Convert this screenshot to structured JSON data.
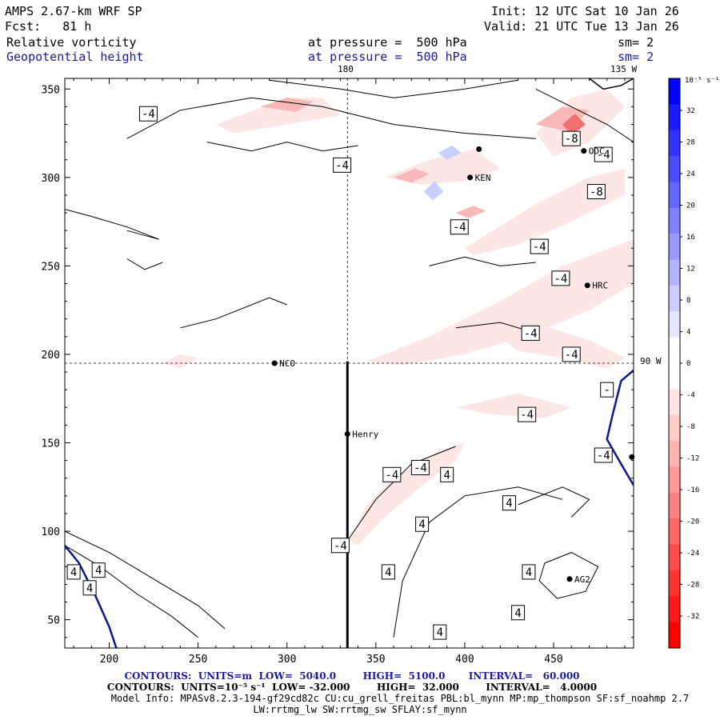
{
  "header": {
    "model": "AMPS 2.67-km WRF SP",
    "init": "Init: 12 UTC Sat 10 Jan 26",
    "fcst": "Fcst:   81 h",
    "valid": "Valid: 21 UTC Tue 13 Jan 26",
    "field1": "Relative vorticity",
    "field1_level": "at pressure =  500 hPa",
    "field1_sm": "sm= 2",
    "field2": "Geopotential height",
    "field2_level": "at pressure =  500 hPa",
    "field2_sm": "sm= 2"
  },
  "footer": {
    "line1": "CONTOURS:  UNITS=m  LOW=  5040.0        HIGH=  5100.0       INTERVAL=   60.000",
    "line2": "CONTOURS:  UNITS=10⁻⁵ s⁻¹  LOW= -32.000        HIGH=  32.000        INTERVAL=   4.0000",
    "line3": "Model Info: MPASv8.2.3-194-gf29cd82c CU:cu_grell_freitas PBL:bl_mynn MP:mp_thompson SF:sf_noahmp 2.7",
    "line4": "LW:rrtmg_lw SW:rrtmg_sw SFLAY:sf_mynn"
  },
  "colors": {
    "geopotential": "#0a1a8c",
    "neg_line": "#000000",
    "pos_fill": "#7f93ff",
    "neg_fill": "#ff8080"
  },
  "chart_data": {
    "type": "heatmap",
    "title": "Relative vorticity / Geopotential height at 500 hPa",
    "xlim": [
      175,
      495
    ],
    "ylim": [
      34,
      356
    ],
    "x_ticks": [
      200,
      250,
      300,
      350,
      400,
      450
    ],
    "y_ticks": [
      50,
      100,
      150,
      200,
      250,
      300,
      350
    ],
    "grid_labels": {
      "lon_180": "180",
      "lon_135w": "135 W",
      "lat_90w": "90 W"
    },
    "reference_lines": {
      "vertical_x": 334,
      "horizontal_y": 195
    },
    "cross_section": {
      "x": 334,
      "y_from": 34,
      "y_to": 196
    },
    "stations": [
      {
        "name": "NCO",
        "x": 293,
        "y": 195
      },
      {
        "name": "Henry",
        "x": 334,
        "y": 155
      },
      {
        "name": "ODC",
        "x": 467,
        "y": 315
      },
      {
        "name": "HRC",
        "x": 469,
        "y": 239
      },
      {
        "name": "KEN",
        "x": 403,
        "y": 300
      },
      {
        "name": "AG2",
        "x": 459,
        "y": 73
      },
      {
        "name": "",
        "x": 408,
        "y": 316
      },
      {
        "name": "",
        "x": 494,
        "y": 142
      }
    ],
    "contour_labels": [
      {
        "text": "-4",
        "x": 222,
        "y": 336
      },
      {
        "text": "-4",
        "x": 331,
        "y": 307
      },
      {
        "text": "-4",
        "x": 397,
        "y": 272
      },
      {
        "text": "-8",
        "x": 460,
        "y": 322
      },
      {
        "text": "-4",
        "x": 478,
        "y": 313
      },
      {
        "text": "-8",
        "x": 474,
        "y": 292
      },
      {
        "text": "-4",
        "x": 442,
        "y": 261
      },
      {
        "text": "-4",
        "x": 454,
        "y": 243
      },
      {
        "text": "-4",
        "x": 437,
        "y": 212
      },
      {
        "text": "-4",
        "x": 460,
        "y": 200
      },
      {
        "text": "-",
        "x": 480,
        "y": 180
      },
      {
        "text": "-4",
        "x": 435,
        "y": 166
      },
      {
        "text": "-4",
        "x": 478,
        "y": 143
      },
      {
        "text": "-4",
        "x": 375,
        "y": 136
      },
      {
        "text": "-4",
        "x": 359,
        "y": 132
      },
      {
        "text": "-4",
        "x": 330,
        "y": 92
      },
      {
        "text": "4",
        "x": 390,
        "y": 132
      },
      {
        "text": "4",
        "x": 425,
        "y": 116
      },
      {
        "text": "4",
        "x": 376,
        "y": 104
      },
      {
        "text": "4",
        "x": 194,
        "y": 78
      },
      {
        "text": "4",
        "x": 180,
        "y": 77
      },
      {
        "text": "4",
        "x": 189,
        "y": 68
      },
      {
        "text": "4",
        "x": 357,
        "y": 77
      },
      {
        "text": "4",
        "x": 436,
        "y": 77
      },
      {
        "text": "4",
        "x": 430,
        "y": 54
      },
      {
        "text": "4",
        "x": 386,
        "y": 43
      }
    ],
    "colorbar": {
      "units_label": "10⁻⁵ s⁻¹",
      "ticks": [
        32,
        28,
        24,
        20,
        16,
        12,
        8,
        4,
        0,
        -4,
        -8,
        -12,
        -16,
        -20,
        -24,
        -28,
        -32
      ],
      "colors": [
        "#0000ff",
        "#1a1aff",
        "#3333ff",
        "#4d4dff",
        "#6666ff",
        "#8080ff",
        "#9999ff",
        "#b3b3ff",
        "#ccccff",
        "#e6e6ff",
        "#ffffff",
        "#ffffff",
        "#ffe6e6",
        "#ffcccc",
        "#ffb3b3",
        "#ff9999",
        "#ff8080",
        "#ff6666",
        "#ff4d4d",
        "#ff3333",
        "#ff1a1a",
        "#ff0000"
      ]
    }
  }
}
